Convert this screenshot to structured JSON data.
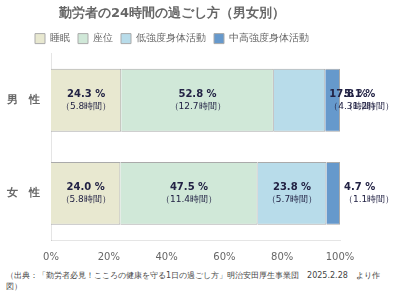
{
  "chart_data": {
    "type": "bar",
    "orientation": "horizontal",
    "stacked": true,
    "title": "勤労者の24時間の過ごし方（男女別）",
    "categories": [
      "男　性",
      "女　性"
    ],
    "series": [
      {
        "name": "睡眠",
        "color": "#e8e8d0",
        "values": [
          24.3,
          24.0
        ],
        "value_labels": [
          [
            "24.3 %",
            "（5.8時間）"
          ],
          [
            "24.0 %",
            "（5.8時間）"
          ]
        ]
      },
      {
        "name": "座位",
        "color": "#d0e8d8",
        "values": [
          52.8,
          47.5
        ],
        "value_labels": [
          [
            "52.8 %",
            "（12.7時間）"
          ],
          [
            "47.5 %",
            "（11.4時間）"
          ]
        ]
      },
      {
        "name": "低強度身体活動",
        "color": "#b8dcea",
        "values": [
          17.8,
          23.8
        ],
        "value_labels": [
          [
            "17.8 %",
            "（4.3時間）"
          ],
          [
            "23.8 %",
            "（5.7時間）"
          ]
        ]
      },
      {
        "name": "中高強度身体活動",
        "color": "#6699cc",
        "values": [
          5.1,
          4.7
        ],
        "value_labels": [
          [
            "5.1 %",
            "（1.2時間）"
          ],
          [
            "4.7 %",
            "（1.1時間）"
          ]
        ]
      }
    ],
    "xlim": [
      0,
      100
    ],
    "xticks": [
      {
        "value": 0,
        "label": "0%"
      },
      {
        "value": 20,
        "label": "20%"
      },
      {
        "value": 40,
        "label": "40%"
      },
      {
        "value": 60,
        "label": "60%"
      },
      {
        "value": 80,
        "label": "80%"
      },
      {
        "value": 100,
        "label": "100%"
      }
    ],
    "grid": false,
    "legend": "top",
    "data_labels": true,
    "footnote": "（出典：「勤労者必見！こころの健康を守る1日の過ごし方」明治安田厚生事業団　2025.2.28　より作図）"
  }
}
